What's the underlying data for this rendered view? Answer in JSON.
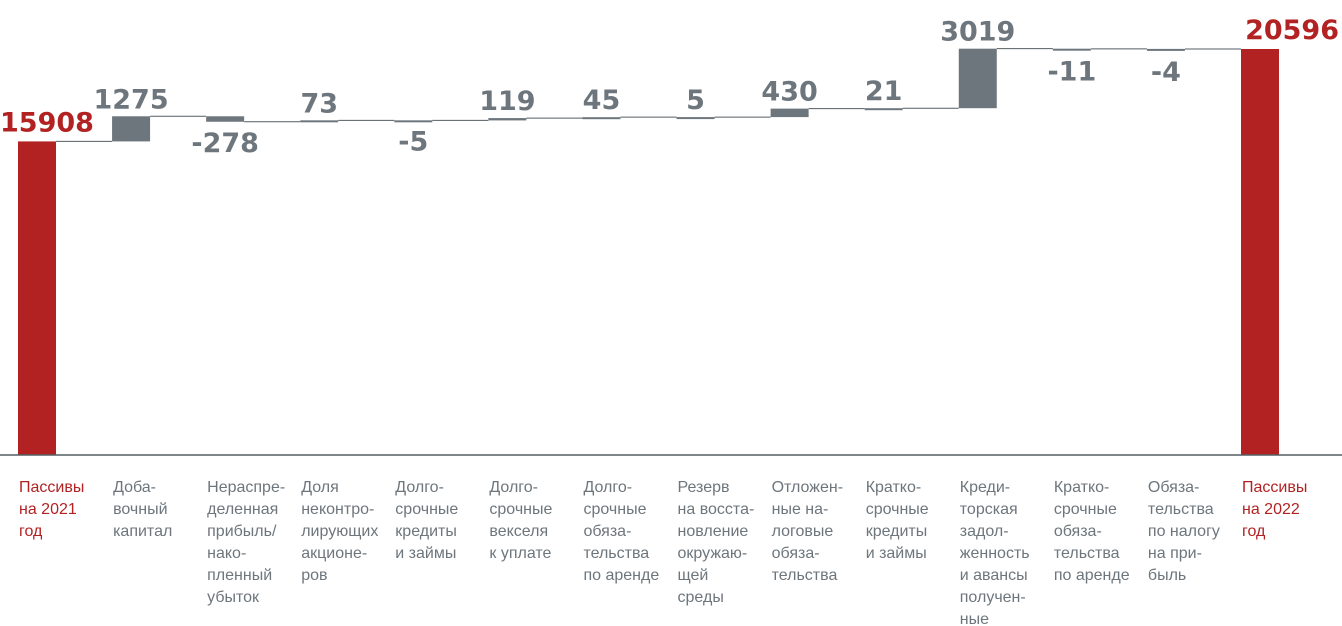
{
  "chart_data": {
    "type": "waterfall",
    "title": "",
    "xlabel": "",
    "ylabel": "",
    "ylim": [
      0,
      21000
    ],
    "grid": false,
    "legend": "none",
    "colors": {
      "total": "#B22222",
      "step": "#6D767C",
      "axis": "#555E63"
    },
    "categories": [
      [
        "Пассивы",
        "на 2021",
        "год"
      ],
      [
        "Доба-",
        "вочный",
        "капитал"
      ],
      [
        "Нераспре-",
        "деленная",
        "прибыль/",
        "нако-",
        "пленный",
        "убыток"
      ],
      [
        "Доля",
        "неконтро-",
        "лирующих",
        "акционе-",
        "ров"
      ],
      [
        "Долго-",
        "срочные",
        "кредиты",
        "и займы"
      ],
      [
        "Долго-",
        "срочные",
        "векселя",
        "к уплате"
      ],
      [
        "Долго-",
        "срочные",
        "обяза-",
        "тельства",
        "по аренде"
      ],
      [
        "Резерв",
        "на восста-",
        "новление",
        "окружаю-",
        "щей",
        "среды"
      ],
      [
        "Отложен-",
        "ные на-",
        "логовые",
        "обяза-",
        "тельства"
      ],
      [
        "Кратко-",
        "срочные",
        "кредиты",
        "и займы"
      ],
      [
        "Креди-",
        "торская",
        "задол-",
        "женность",
        "и авансы",
        "получен-",
        "ные"
      ],
      [
        "Кратко-",
        "срочные",
        "обяза-",
        "тельства",
        "по аренде"
      ],
      [
        "Обяза-",
        "тельства",
        "по налогу",
        "на при-",
        "быль"
      ],
      [
        "Пассивы",
        "на 2022",
        "год"
      ]
    ],
    "kinds": [
      "total",
      "step",
      "step",
      "step",
      "step",
      "step",
      "step",
      "step",
      "step",
      "step",
      "step",
      "step",
      "step",
      "total"
    ],
    "values": [
      15908,
      1275,
      -278,
      73,
      -5,
      119,
      45,
      5,
      430,
      21,
      3019,
      -11,
      -4,
      20596
    ],
    "labels": [
      "15908",
      "1275",
      "-278",
      "73",
      "-5",
      "119",
      "45",
      "5",
      "430",
      "21",
      "3019",
      "-11",
      "-4",
      "20596"
    ]
  }
}
